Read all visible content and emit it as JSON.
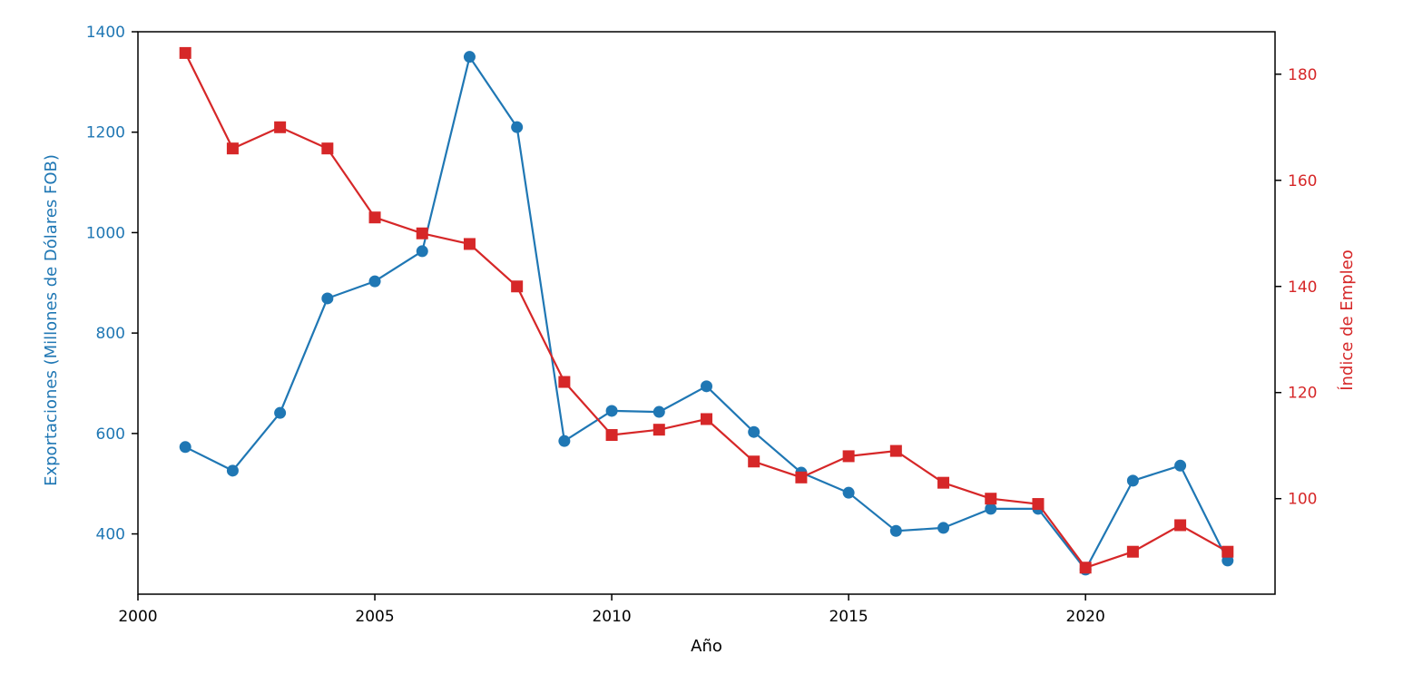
{
  "chart_data": {
    "type": "line",
    "title": "",
    "x": [
      2001,
      2002,
      2003,
      2004,
      2005,
      2006,
      2007,
      2008,
      2009,
      2010,
      2011,
      2012,
      2013,
      2014,
      2015,
      2016,
      2017,
      2018,
      2019,
      2020,
      2021,
      2022,
      2023
    ],
    "xlabel": "Año",
    "xlim": [
      2000,
      2024
    ],
    "xticks": [
      "2000",
      "2005",
      "2010",
      "2015",
      "2020"
    ],
    "y_left": {
      "label": "Exportaciones (Millones de Dólares FOB)",
      "color": "#1f77b4",
      "ylim": [
        280,
        1400
      ],
      "ticks": [
        "400",
        "600",
        "800",
        "1000",
        "1200",
        "1400"
      ]
    },
    "y_right": {
      "label": "Índice de Empleo",
      "color": "#d62728",
      "ylim": [
        82,
        188
      ],
      "ticks": [
        "100",
        "120",
        "140",
        "160",
        "180"
      ]
    },
    "series": [
      {
        "axis": "left",
        "marker": "circle",
        "color": "#1f77b4",
        "values": [
          573,
          526,
          641,
          869,
          903,
          963,
          1350,
          1210,
          585,
          645,
          643,
          694,
          603,
          522,
          482,
          406,
          412,
          450,
          450,
          329,
          506,
          536,
          347
        ]
      },
      {
        "axis": "right",
        "marker": "square",
        "color": "#d62728",
        "values": [
          184,
          166,
          170,
          166,
          153,
          150,
          148,
          140,
          122,
          112,
          113,
          115,
          107,
          104,
          108,
          109,
          103,
          100,
          99,
          87,
          90,
          95,
          90
        ]
      }
    ],
    "grid": false,
    "legend": "none"
  }
}
